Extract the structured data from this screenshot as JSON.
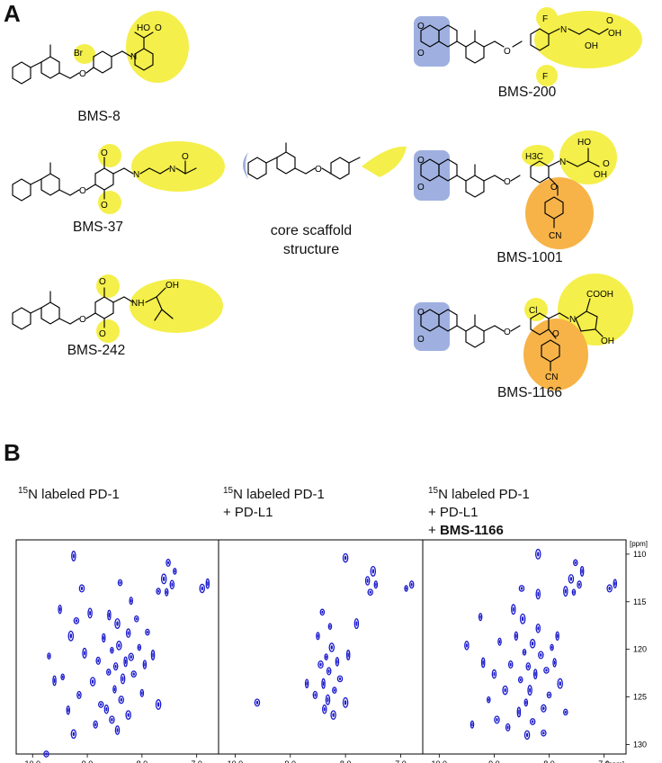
{
  "panel_a": {
    "letter": "A",
    "compounds": [
      {
        "id": "bms8",
        "name": "BMS-8",
        "atoms": [
          "Br",
          "HO",
          "O",
          "N",
          "O"
        ]
      },
      {
        "id": "bms200",
        "name": "BMS-200",
        "atoms": [
          "F",
          "F",
          "O",
          "O",
          "O",
          "N",
          "OH",
          "OH",
          "O"
        ]
      },
      {
        "id": "bms37",
        "name": "BMS-37",
        "atoms": [
          "O",
          "O",
          "O",
          "N",
          "N",
          "O"
        ]
      },
      {
        "id": "bms1001",
        "name": "BMS-1001",
        "atoms": [
          "H3C",
          "O",
          "O",
          "O",
          "O",
          "N",
          "HO",
          "OH",
          "O",
          "CN"
        ]
      },
      {
        "id": "bms242",
        "name": "BMS-242",
        "atoms": [
          "O",
          "O",
          "O",
          "NH",
          "OH"
        ]
      },
      {
        "id": "bms1166",
        "name": "BMS-1166",
        "atoms": [
          "Cl",
          "O",
          "O",
          "O",
          "O",
          "N",
          "COOH",
          "OH",
          "CN"
        ]
      }
    ],
    "core": {
      "label_line1": "core scaffold",
      "label_line2": "structure",
      "atom": "O"
    },
    "colors": {
      "yellow_highlight": "#f4ef4a",
      "blue_highlight": "#9fb0e0",
      "orange_highlight": "#f7b347"
    }
  },
  "panel_b": {
    "letter": "B",
    "conditions": [
      {
        "line1_sup": "15",
        "line1": "N labeled PD-1",
        "line2": "",
        "line3": ""
      },
      {
        "line1_sup": "15",
        "line1": "N labeled PD-1",
        "line2": "+ PD-L1",
        "line3": ""
      },
      {
        "line1_sup": "15",
        "line1": "N labeled PD-1",
        "line2": "+ PD-L1",
        "line3_prefix": "+ ",
        "line3": "BMS-1166"
      }
    ],
    "spectra": {
      "type": "scatter",
      "x_unit": "[ppm]",
      "y_unit": "[ppm]",
      "xlim": [
        10.3,
        6.6
      ],
      "ylim": [
        108.5,
        131
      ],
      "x_ticks": [
        10.0,
        9.0,
        8.0,
        7.0
      ],
      "y_ticks": [
        110,
        115,
        120,
        125,
        130
      ],
      "peak_color": "#1a1acc",
      "panels": [
        {
          "name": "PD-1",
          "peaks": [
            [
              8.55,
              120.1
            ],
            [
              8.48,
              121.8
            ],
            [
              8.42,
              119.6
            ],
            [
              8.3,
              121.3
            ],
            [
              8.61,
              122.4
            ],
            [
              8.2,
              120.8
            ],
            [
              8.7,
              118.8
            ],
            [
              8.35,
              123.1
            ],
            [
              8.15,
              122.6
            ],
            [
              8.5,
              124.2
            ],
            [
              8.25,
              118.3
            ],
            [
              8.45,
              117.3
            ],
            [
              8.05,
              119.8
            ],
            [
              8.8,
              121.2
            ],
            [
              8.9,
              123.4
            ],
            [
              8.6,
              116.4
            ],
            [
              8.1,
              116.8
            ],
            [
              8.38,
              125.3
            ],
            [
              7.95,
              121.6
            ],
            [
              9.05,
              120.4
            ],
            [
              8.75,
              125.8
            ],
            [
              8.0,
              124.6
            ],
            [
              8.65,
              126.3
            ],
            [
              9.3,
              118.6
            ],
            [
              9.45,
              122.9
            ],
            [
              9.15,
              124.8
            ],
            [
              8.25,
              126.9
            ],
            [
              9.6,
              123.3
            ],
            [
              7.9,
              118.2
            ],
            [
              8.55,
              127.4
            ],
            [
              9.35,
              126.4
            ],
            [
              8.95,
              116.2
            ],
            [
              9.2,
              117.0
            ],
            [
              8.2,
              114.9
            ],
            [
              8.45,
              128.5
            ],
            [
              7.7,
              125.8
            ],
            [
              9.7,
              120.7
            ],
            [
              8.85,
              127.9
            ],
            [
              9.25,
              128.9
            ],
            [
              7.8,
              120.6
            ],
            [
              8.4,
              113.0
            ],
            [
              9.1,
              113.6
            ],
            [
              9.5,
              115.8
            ],
            [
              9.25,
              110.2
            ],
            [
              9.75,
              131.0
            ],
            [
              7.55,
              114.0
            ],
            [
              7.45,
              113.2
            ],
            [
              7.6,
              112.6
            ],
            [
              7.4,
              111.8
            ],
            [
              7.52,
              110.9
            ],
            [
              6.9,
              113.6
            ],
            [
              6.8,
              113.1
            ],
            [
              7.7,
              113.9
            ]
          ]
        },
        {
          "name": "PD-1 + PD-L1",
          "peaks": [
            [
              8.35,
              120.8
            ],
            [
              8.3,
              122.3
            ],
            [
              8.25,
              119.8
            ],
            [
              8.4,
              123.6
            ],
            [
              8.2,
              124.3
            ],
            [
              8.45,
              121.6
            ],
            [
              8.15,
              121.3
            ],
            [
              8.32,
              125.3
            ],
            [
              8.1,
              123.1
            ],
            [
              8.5,
              118.6
            ],
            [
              8.38,
              126.3
            ],
            [
              8.0,
              125.6
            ],
            [
              8.28,
              117.6
            ],
            [
              8.55,
              124.8
            ],
            [
              8.22,
              126.9
            ],
            [
              7.95,
              120.6
            ],
            [
              8.42,
              116.1
            ],
            [
              9.6,
              125.6
            ],
            [
              8.7,
              123.6
            ],
            [
              7.8,
              117.3
            ],
            [
              7.55,
              114.0
            ],
            [
              7.45,
              113.2
            ],
            [
              7.6,
              112.8
            ],
            [
              7.5,
              111.8
            ],
            [
              6.9,
              113.6
            ],
            [
              6.8,
              113.2
            ],
            [
              8.0,
              110.4
            ]
          ]
        },
        {
          "name": "PD-1 + PD-L1 + BMS-1166",
          "peaks": [
            [
              8.45,
              120.3
            ],
            [
              8.38,
              121.8
            ],
            [
              8.3,
              119.4
            ],
            [
              8.25,
              122.6
            ],
            [
              8.52,
              123.2
            ],
            [
              8.15,
              120.6
            ],
            [
              8.6,
              118.6
            ],
            [
              8.35,
              124.3
            ],
            [
              8.05,
              122.2
            ],
            [
              8.42,
              125.6
            ],
            [
              8.2,
              117.8
            ],
            [
              8.48,
              116.8
            ],
            [
              7.95,
              119.8
            ],
            [
              8.7,
              121.6
            ],
            [
              8.8,
              124.3
            ],
            [
              8.55,
              126.6
            ],
            [
              8.0,
              124.8
            ],
            [
              8.1,
              126.2
            ],
            [
              7.9,
              121.4
            ],
            [
              8.65,
              115.8
            ],
            [
              8.3,
              127.6
            ],
            [
              8.9,
              119.2
            ],
            [
              9.0,
              122.6
            ],
            [
              7.8,
              123.6
            ],
            [
              9.1,
              125.3
            ],
            [
              8.75,
              128.2
            ],
            [
              8.4,
              129.0
            ],
            [
              9.2,
              121.4
            ],
            [
              7.7,
              126.6
            ],
            [
              8.95,
              127.4
            ],
            [
              7.85,
              118.6
            ],
            [
              8.2,
              114.2
            ],
            [
              8.5,
              113.6
            ],
            [
              9.25,
              116.6
            ],
            [
              9.5,
              119.6
            ],
            [
              8.2,
              110.0
            ],
            [
              7.55,
              114.0
            ],
            [
              7.45,
              113.2
            ],
            [
              7.6,
              112.6
            ],
            [
              7.4,
              111.8
            ],
            [
              7.52,
              110.9
            ],
            [
              6.9,
              113.6
            ],
            [
              6.8,
              113.1
            ],
            [
              7.7,
              113.9
            ],
            [
              8.1,
              128.8
            ],
            [
              9.4,
              127.9
            ]
          ]
        }
      ]
    }
  }
}
